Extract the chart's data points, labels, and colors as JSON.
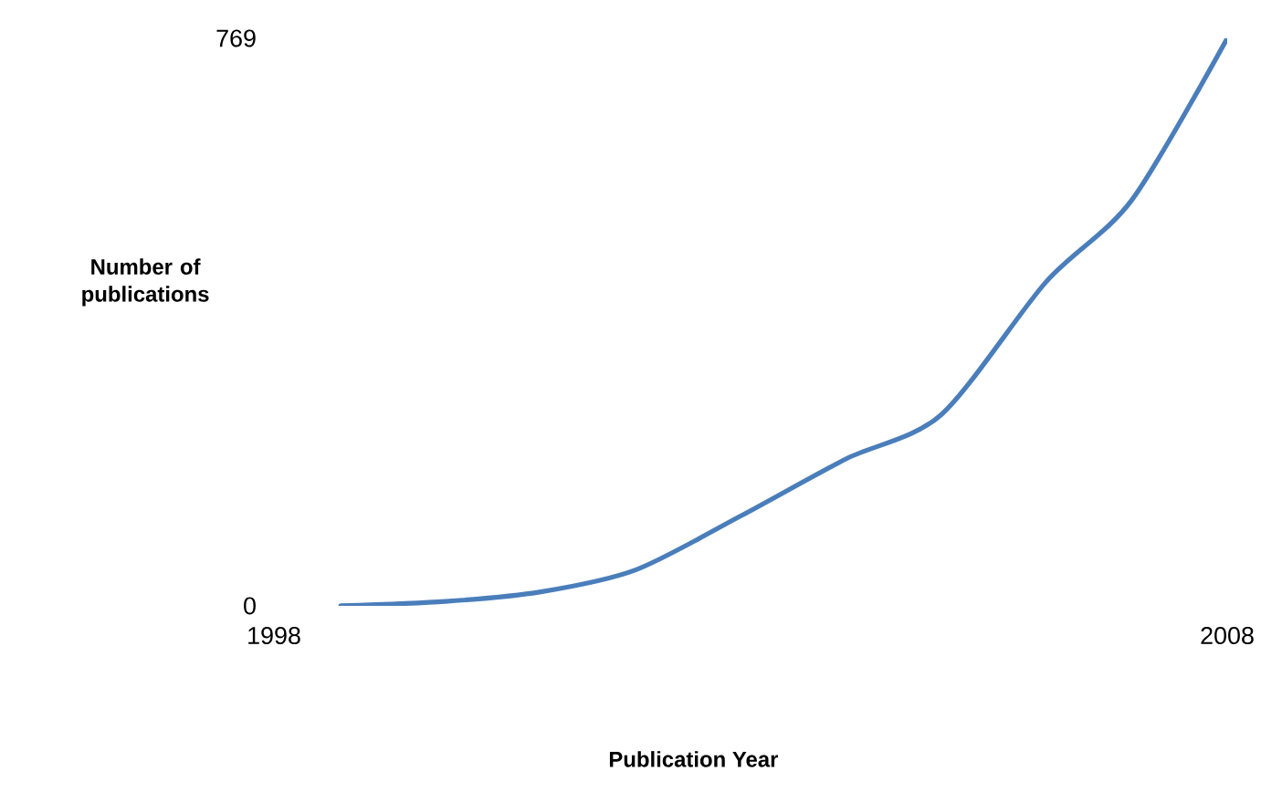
{
  "chart_data": {
    "type": "line",
    "xlabel": "Publication Year",
    "ylabel": "Number of publications",
    "x": [
      1998.7,
      1999.8,
      2000.8,
      2001.8,
      2002.9,
      2004,
      2005,
      2006.1,
      2007,
      2008
    ],
    "series": [
      {
        "color": "#4a7ebb",
        "values": [
          0,
          6,
          19,
          49,
          122,
          199,
          259,
          439,
          550,
          769
        ]
      }
    ],
    "xlim": [
      1998,
      2008
    ],
    "xticks": [
      1998,
      2008
    ],
    "ylim": [
      0,
      769
    ],
    "yticks": [
      0,
      769
    ],
    "grid": false,
    "marker": "none",
    "line_style": "solid"
  }
}
